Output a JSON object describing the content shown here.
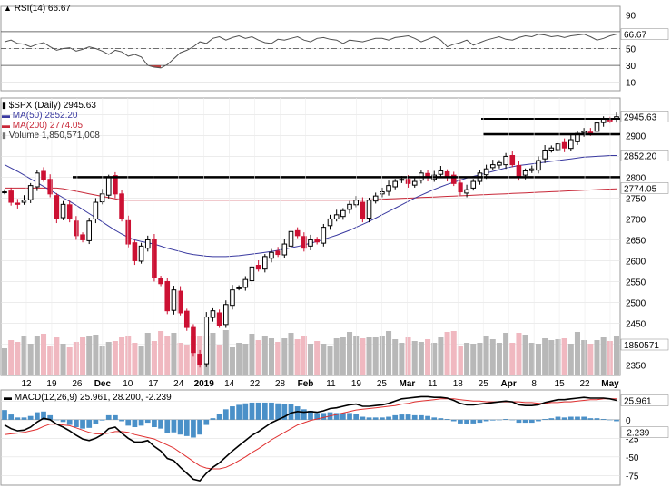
{
  "chart_data": [
    {
      "panel": "rsi",
      "type": "line",
      "label": "RSI(14) 66.67",
      "current_value_label": "66.67",
      "y_ticks": [
        10,
        30,
        50,
        70,
        90
      ],
      "ylim": [
        0,
        100
      ],
      "reference_lines": [
        30,
        50,
        70
      ],
      "values": [
        58,
        60,
        56,
        55,
        52,
        55,
        57,
        52,
        48,
        50,
        51,
        47,
        49,
        52,
        50,
        47,
        43,
        48,
        46,
        41,
        43,
        40,
        30,
        28,
        27,
        31,
        38,
        45,
        48,
        52,
        58,
        56,
        62,
        64,
        60,
        63,
        65,
        62,
        64,
        60,
        57,
        56,
        61,
        60,
        62,
        64,
        60,
        58,
        62,
        63,
        61,
        60,
        56,
        60,
        59,
        58,
        60,
        62,
        62,
        60,
        63,
        64,
        65,
        62,
        58,
        61,
        64,
        60,
        52,
        55,
        57,
        60,
        54,
        57,
        60,
        62,
        64,
        61,
        60,
        63,
        65,
        64,
        67,
        66,
        64,
        65,
        63,
        65,
        66,
        67,
        64,
        60,
        62,
        65,
        67
      ]
    },
    {
      "panel": "price",
      "type": "candlestick",
      "symbol_label": "$SPX (Daily) 2945.63",
      "ma50_label": "MA(50) 2852.20",
      "ma200_label": "MA(200) 2774.05",
      "volume_label": "Volume 1,850,571,008",
      "last_price_label": "2945.63",
      "ma50_last_label": "2852.20",
      "ma200_last_label": "2774.05",
      "volume_last_label": "1850571",
      "y_ticks": [
        2350,
        2400,
        2450,
        2500,
        2550,
        2600,
        2650,
        2700,
        2750,
        2800,
        2850,
        2900,
        2950
      ],
      "ylim": [
        2325,
        2990
      ],
      "x_ticks": [
        "12",
        "19",
        "26",
        "Dec",
        "10",
        "17",
        "24",
        "2019",
        "14",
        "22",
        "28",
        "Feb",
        "11",
        "19",
        "25",
        "Mar",
        "11",
        "18",
        "25",
        "Apr",
        "8",
        "15",
        "22",
        "May"
      ],
      "close": [
        2765,
        2740,
        2735,
        2745,
        2780,
        2810,
        2795,
        2760,
        2700,
        2735,
        2700,
        2660,
        2650,
        2695,
        2740,
        2760,
        2800,
        2760,
        2700,
        2640,
        2600,
        2635,
        2650,
        2560,
        2545,
        2480,
        2530,
        2475,
        2440,
        2380,
        2350,
        2465,
        2480,
        2445,
        2495,
        2530,
        2535,
        2555,
        2585,
        2580,
        2610,
        2620,
        2615,
        2640,
        2670,
        2660,
        2630,
        2650,
        2645,
        2680,
        2700,
        2710,
        2720,
        2735,
        2745,
        2700,
        2745,
        2755,
        2765,
        2780,
        2790,
        2795,
        2785,
        2790,
        2810,
        2800,
        2805,
        2815,
        2800,
        2785,
        2765,
        2770,
        2790,
        2810,
        2820,
        2830,
        2835,
        2850,
        2830,
        2800,
        2815,
        2820,
        2840,
        2865,
        2870,
        2880,
        2870,
        2890,
        2905,
        2910,
        2905,
        2930,
        2940,
        2935,
        2945
      ],
      "ma50": [
        2830,
        2822,
        2814,
        2805,
        2796,
        2787,
        2778,
        2769,
        2760,
        2751,
        2742,
        2733,
        2723,
        2713,
        2703,
        2693,
        2683,
        2673,
        2664,
        2656,
        2650,
        2646,
        2643,
        2640,
        2635,
        2630,
        2626,
        2622,
        2618,
        2615,
        2613,
        2611,
        2610,
        2610,
        2610,
        2611,
        2612,
        2614,
        2616,
        2618,
        2620,
        2622,
        2625,
        2628,
        2631,
        2634,
        2638,
        2642,
        2646,
        2651,
        2656,
        2661,
        2667,
        2673,
        2680,
        2687,
        2694,
        2702,
        2710,
        2718,
        2726,
        2734,
        2742,
        2750,
        2757,
        2764,
        2771,
        2777,
        2783,
        2788,
        2793,
        2798,
        2802,
        2806,
        2810,
        2814,
        2818,
        2822,
        2825,
        2828,
        2830,
        2832,
        2834,
        2836,
        2838,
        2840,
        2842,
        2844,
        2846,
        2848,
        2849,
        2850,
        2851,
        2852,
        2852
      ]
    },
    {
      "panel": "macd",
      "type": "line+histogram",
      "label": "MACD(12,26,9) 25.961, 28.200, -2.239",
      "macd_last_label": "25.961",
      "hist_last_label": "-2.239",
      "y_ticks": [
        -75,
        -50,
        -25,
        0,
        25
      ],
      "ylim": [
        -88,
        40
      ],
      "macd": [
        -7,
        -12,
        -15,
        -14,
        -10,
        -3,
        2,
        0,
        -6,
        -10,
        -15,
        -21,
        -26,
        -28,
        -25,
        -20,
        -12,
        -10,
        -18,
        -25,
        -30,
        -30,
        -28,
        -36,
        -42,
        -52,
        -55,
        -64,
        -72,
        -80,
        -82,
        -72,
        -64,
        -58,
        -50,
        -42,
        -35,
        -28,
        -21,
        -16,
        -10,
        -4,
        0,
        4,
        9,
        11,
        10,
        11,
        10,
        12,
        15,
        16,
        18,
        20,
        21,
        18,
        18,
        19,
        20,
        22,
        25,
        28,
        29,
        30,
        31,
        31,
        30,
        30,
        29,
        26,
        22,
        20,
        20,
        21,
        22,
        23,
        24,
        25,
        24,
        20,
        19,
        19,
        20,
        23,
        25,
        27,
        27,
        28,
        29,
        30,
        29,
        29,
        29,
        28,
        26
      ],
      "signal": [
        -20,
        -19,
        -18,
        -17,
        -15,
        -13,
        -9,
        -6,
        -6,
        -7,
        -8,
        -11,
        -14,
        -17,
        -19,
        -19,
        -18,
        -16,
        -16,
        -17,
        -20,
        -22,
        -24,
        -26,
        -30,
        -34,
        -38,
        -44,
        -50,
        -56,
        -62,
        -65,
        -66,
        -66,
        -64,
        -60,
        -55,
        -50,
        -44,
        -39,
        -33,
        -27,
        -22,
        -17,
        -12,
        -7,
        -4,
        -1,
        1,
        3,
        5,
        7,
        9,
        11,
        13,
        14,
        15,
        16,
        17,
        18,
        19,
        21,
        22,
        24,
        25,
        26,
        27,
        28,
        28,
        28,
        27,
        26,
        25,
        25,
        24,
        24,
        24,
        24,
        24,
        24,
        23,
        23,
        22,
        22,
        23,
        23,
        24,
        24,
        25,
        26,
        27,
        27,
        28,
        28,
        28
      ]
    }
  ],
  "colors": {
    "up_candle": "#000000",
    "down_candle": "#cc1133",
    "ma50": "#3a3aa0",
    "ma200": "#c82838",
    "macd_line": "#000000",
    "signal_line": "#e03030",
    "histogram": "#4a90c8",
    "volume_up": "#b8b8b8",
    "volume_down": "#f0b8c0",
    "rsi_line": "#505050",
    "rsi_oversold_fill": "#c04040"
  }
}
